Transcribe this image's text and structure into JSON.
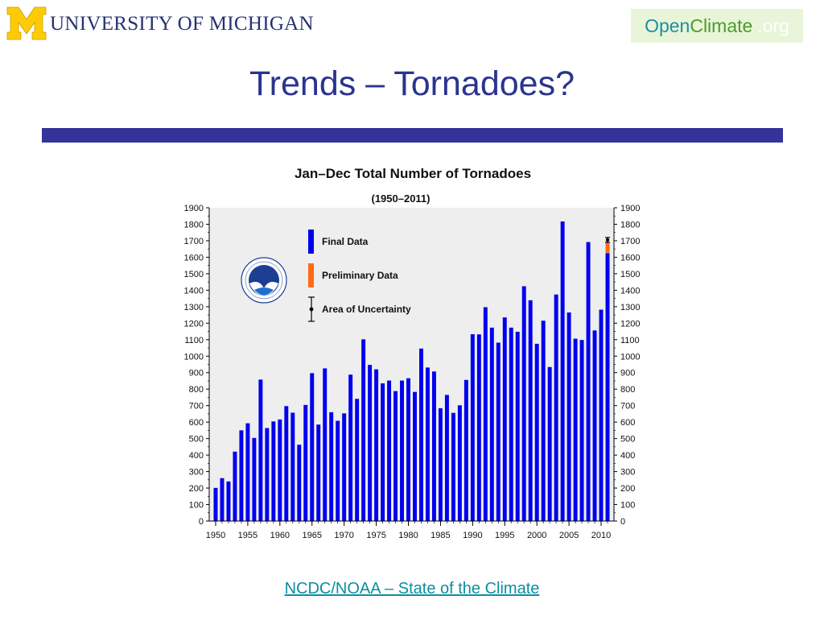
{
  "header": {
    "university_name": "UNIVERSITY OF MICHIGAN",
    "openclimate": {
      "open": "Open",
      "climate": "Climate",
      "org": ".org"
    },
    "slide_title": "Trends – Tornadoes?"
  },
  "source_link": "NCDC/NOAA – State of the Climate",
  "colors": {
    "title": "#2b3390",
    "bar_blue": "#0000ee",
    "bar_preliminary": "#ff6a13",
    "plot_background": "#eeeeee",
    "rule": "#333399",
    "umich_maize": "#ffcb05",
    "umich_blue": "#233273"
  },
  "chart_data": {
    "type": "bar",
    "title": "Jan–Dec Total Number of Tornadoes",
    "subtitle": "(1950–2011)",
    "xlabel": "",
    "ylabel": "",
    "ylim": [
      0,
      1900
    ],
    "xlim": [
      1949,
      2012
    ],
    "y_ticks": [
      0,
      100,
      200,
      300,
      400,
      500,
      600,
      700,
      800,
      900,
      1000,
      1100,
      1200,
      1300,
      1400,
      1500,
      1600,
      1700,
      1800,
      1900
    ],
    "x_ticks": [
      1950,
      1955,
      1960,
      1965,
      1970,
      1975,
      1980,
      1985,
      1990,
      1995,
      2000,
      2005,
      2010
    ],
    "grid": false,
    "legend_position": "top-left",
    "legend": [
      {
        "label": "Final Data",
        "color": "#0000ee",
        "kind": "bar"
      },
      {
        "label": "Preliminary Data",
        "color": "#ff6a13",
        "kind": "bar"
      },
      {
        "label": "Area of Uncertainty",
        "color": "#000000",
        "kind": "errorbar"
      }
    ],
    "categories": [
      1950,
      1951,
      1952,
      1953,
      1954,
      1955,
      1956,
      1957,
      1958,
      1959,
      1960,
      1961,
      1962,
      1963,
      1964,
      1965,
      1966,
      1967,
      1968,
      1969,
      1970,
      1971,
      1972,
      1973,
      1974,
      1975,
      1976,
      1977,
      1978,
      1979,
      1980,
      1981,
      1982,
      1983,
      1984,
      1985,
      1986,
      1987,
      1988,
      1989,
      1990,
      1991,
      1992,
      1993,
      1994,
      1995,
      1996,
      1997,
      1998,
      1999,
      2000,
      2001,
      2002,
      2003,
      2004,
      2005,
      2006,
      2007,
      2008,
      2009,
      2010,
      2011
    ],
    "series": [
      {
        "name": "Final Data",
        "values": [
          201,
          260,
          240,
          421,
          550,
          593,
          504,
          858,
          564,
          604,
          616,
          697,
          657,
          463,
          704,
          897,
          585,
          926,
          660,
          608,
          653,
          888,
          741,
          1102,
          947,
          920,
          835,
          852,
          788,
          852,
          866,
          783,
          1046,
          931,
          907,
          684,
          765,
          656,
          702,
          856,
          1133,
          1132,
          1297,
          1173,
          1082,
          1235,
          1173,
          1148,
          1424,
          1339,
          1075,
          1215,
          934,
          1374,
          1817,
          1265,
          1106,
          1098,
          1692,
          1156,
          1282,
          1625
        ]
      },
      {
        "name": "Preliminary Data",
        "values": [
          0,
          0,
          0,
          0,
          0,
          0,
          0,
          0,
          0,
          0,
          0,
          0,
          0,
          0,
          0,
          0,
          0,
          0,
          0,
          0,
          0,
          0,
          0,
          0,
          0,
          0,
          0,
          0,
          0,
          0,
          0,
          0,
          0,
          0,
          0,
          0,
          0,
          0,
          0,
          0,
          0,
          0,
          0,
          0,
          0,
          0,
          0,
          0,
          0,
          0,
          0,
          0,
          0,
          0,
          0,
          0,
          0,
          0,
          0,
          0,
          0,
          65
        ]
      }
    ],
    "uncertainty": {
      "year": 2011,
      "low": 1690,
      "high": 1720,
      "center": 1705
    }
  }
}
